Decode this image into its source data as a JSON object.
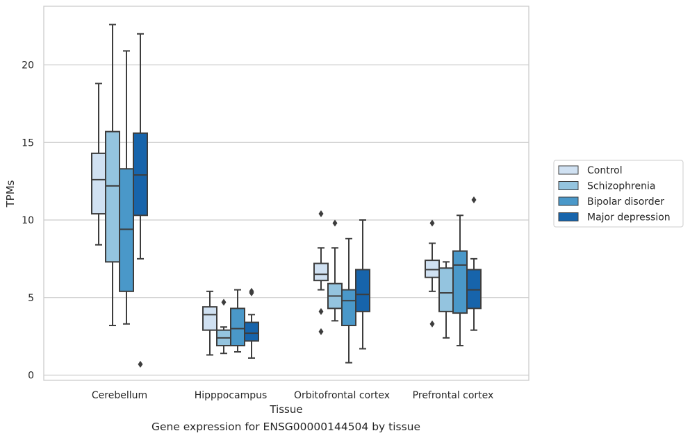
{
  "caption": "Gene expression for ENSG00000144504 by tissue",
  "chart_data": {
    "type": "box",
    "xlabel": "Tissue",
    "ylabel": "TPMs",
    "ylim": [
      -0.3,
      23.7
    ],
    "yticks": [
      0,
      5,
      10,
      15,
      20
    ],
    "grid": "horizontal",
    "legend_position": "right",
    "categories": [
      "Cerebellum",
      "Hipppocampus",
      "Orbitofrontal cortex",
      "Prefrontal cortex"
    ],
    "series": [
      {
        "name": "Control",
        "color": "#d0e1f2",
        "boxes": [
          {
            "whislo": 8.4,
            "q1": 10.4,
            "med": 12.6,
            "q3": 14.3,
            "whishi": 18.8,
            "fliers": []
          },
          {
            "whislo": 1.3,
            "q1": 2.9,
            "med": 3.9,
            "q3": 4.4,
            "whishi": 5.4,
            "fliers": []
          },
          {
            "whislo": 5.5,
            "q1": 6.1,
            "med": 6.5,
            "q3": 7.2,
            "whishi": 8.2,
            "fliers": [
              10.4,
              4.1,
              2.8
            ]
          },
          {
            "whislo": 5.4,
            "q1": 6.3,
            "med": 6.8,
            "q3": 7.4,
            "whishi": 8.5,
            "fliers": [
              9.8,
              3.3
            ]
          }
        ]
      },
      {
        "name": "Schizophrenia",
        "color": "#94c4df",
        "boxes": [
          {
            "whislo": 3.2,
            "q1": 7.3,
            "med": 12.2,
            "q3": 15.7,
            "whishi": 22.6,
            "fliers": []
          },
          {
            "whislo": 1.4,
            "q1": 1.9,
            "med": 2.4,
            "q3": 2.9,
            "whishi": 3.1,
            "fliers": [
              4.7
            ]
          },
          {
            "whislo": 3.5,
            "q1": 4.3,
            "med": 5.1,
            "q3": 5.9,
            "whishi": 8.2,
            "fliers": [
              9.8
            ]
          },
          {
            "whislo": 2.4,
            "q1": 4.1,
            "med": 5.3,
            "q3": 6.9,
            "whishi": 7.3,
            "fliers": []
          }
        ]
      },
      {
        "name": "Bipolar disorder",
        "color": "#4a98c9",
        "boxes": [
          {
            "whislo": 3.3,
            "q1": 5.4,
            "med": 9.4,
            "q3": 13.3,
            "whishi": 20.9,
            "fliers": []
          },
          {
            "whislo": 1.5,
            "q1": 1.9,
            "med": 3.0,
            "q3": 4.3,
            "whishi": 5.5,
            "fliers": []
          },
          {
            "whislo": 0.8,
            "q1": 3.2,
            "med": 4.8,
            "q3": 5.5,
            "whishi": 8.8,
            "fliers": []
          },
          {
            "whislo": 1.9,
            "q1": 4.0,
            "med": 7.1,
            "q3": 8.0,
            "whishi": 10.3,
            "fliers": []
          }
        ]
      },
      {
        "name": "Major depression",
        "color": "#1764ab",
        "boxes": [
          {
            "whislo": 7.5,
            "q1": 10.3,
            "med": 12.9,
            "q3": 15.6,
            "whishi": 22.0,
            "fliers": [
              0.7
            ]
          },
          {
            "whislo": 1.1,
            "q1": 2.2,
            "med": 2.7,
            "q3": 3.4,
            "whishi": 3.9,
            "fliers": [
              5.3,
              5.4
            ]
          },
          {
            "whislo": 1.7,
            "q1": 4.1,
            "med": 5.2,
            "q3": 6.8,
            "whishi": 10.0,
            "fliers": []
          },
          {
            "whislo": 2.9,
            "q1": 4.3,
            "med": 5.5,
            "q3": 6.8,
            "whishi": 7.5,
            "fliers": [
              11.3
            ]
          }
        ]
      }
    ]
  }
}
